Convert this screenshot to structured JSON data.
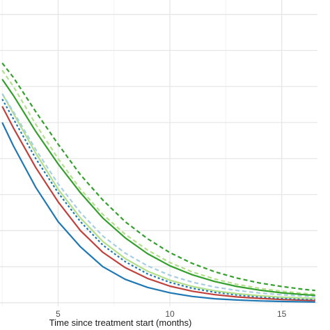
{
  "chart_data": {
    "type": "line",
    "title": "",
    "xlabel": "Time since treatment start (months)",
    "ylabel": "",
    "xlim": [
      2.4,
      16.6
    ],
    "ylim": [
      -0.002,
      0.168
    ],
    "x_ticks": [
      5,
      10,
      15
    ],
    "x_tick_labels": [
      "5",
      "10",
      "15"
    ],
    "x_minor_ticks": [
      2.5,
      7.5,
      12.5
    ],
    "y_gridlines": [
      0.0,
      0.02,
      0.04,
      0.06,
      0.08,
      0.1,
      0.12,
      0.14,
      0.16
    ],
    "grid": true,
    "legend": "none",
    "x": [
      2.5,
      3,
      4,
      5,
      6,
      7,
      8,
      9,
      10,
      11,
      12,
      13,
      14,
      15,
      16,
      16.5
    ],
    "series": [
      {
        "color": "#1f78b4",
        "dash": "solid",
        "values": [
          0.1,
          0.087,
          0.064,
          0.045,
          0.031,
          0.02,
          0.013,
          0.0085,
          0.0055,
          0.0035,
          0.0022,
          0.0015,
          0.001,
          0.0007,
          0.0005,
          0.0004
        ]
      },
      {
        "color": "#c0413b",
        "dash": "solid",
        "values": [
          0.109,
          0.097,
          0.075,
          0.056,
          0.04,
          0.028,
          0.0195,
          0.0135,
          0.0092,
          0.0064,
          0.0045,
          0.0032,
          0.0024,
          0.0018,
          0.0014,
          0.0012
        ]
      },
      {
        "color": "#1f78b4",
        "dash": "dotted",
        "values": [
          0.113,
          0.102,
          0.08,
          0.061,
          0.045,
          0.032,
          0.0228,
          0.016,
          0.0113,
          0.008,
          0.0058,
          0.0043,
          0.0032,
          0.0025,
          0.002,
          0.0018
        ]
      },
      {
        "color": "#b2df8a",
        "dash": "solid",
        "values": [
          0.116,
          0.105,
          0.083,
          0.063,
          0.047,
          0.034,
          0.0245,
          0.0175,
          0.0125,
          0.009,
          0.0066,
          0.005,
          0.0039,
          0.0031,
          0.0026,
          0.0024
        ]
      },
      {
        "color": "#a6cee3",
        "dash": "dashed",
        "values": [
          0.116,
          0.106,
          0.085,
          0.066,
          0.05,
          0.037,
          0.0275,
          0.0205,
          0.0152,
          0.0114,
          0.0087,
          0.0068,
          0.0054,
          0.0044,
          0.0037,
          0.0034
        ]
      },
      {
        "color": "#b2df8a",
        "dash": "dashed",
        "values": [
          0.129,
          0.12,
          0.099,
          0.08,
          0.063,
          0.049,
          0.038,
          0.0292,
          0.0223,
          0.0171,
          0.0132,
          0.0102,
          0.008,
          0.0064,
          0.0052,
          0.0047
        ]
      },
      {
        "color": "#33a02c",
        "dash": "solid",
        "values": [
          0.124,
          0.115,
          0.095,
          0.077,
          0.061,
          0.047,
          0.036,
          0.0272,
          0.0205,
          0.0155,
          0.0118,
          0.009,
          0.007,
          0.0055,
          0.0045,
          0.0041
        ]
      },
      {
        "color": "#33a02c",
        "dash": "dashed",
        "values": [
          0.133,
          0.125,
          0.106,
          0.088,
          0.071,
          0.057,
          0.045,
          0.0355,
          0.0278,
          0.0218,
          0.0172,
          0.0137,
          0.011,
          0.009,
          0.0074,
          0.0068
        ]
      }
    ]
  }
}
